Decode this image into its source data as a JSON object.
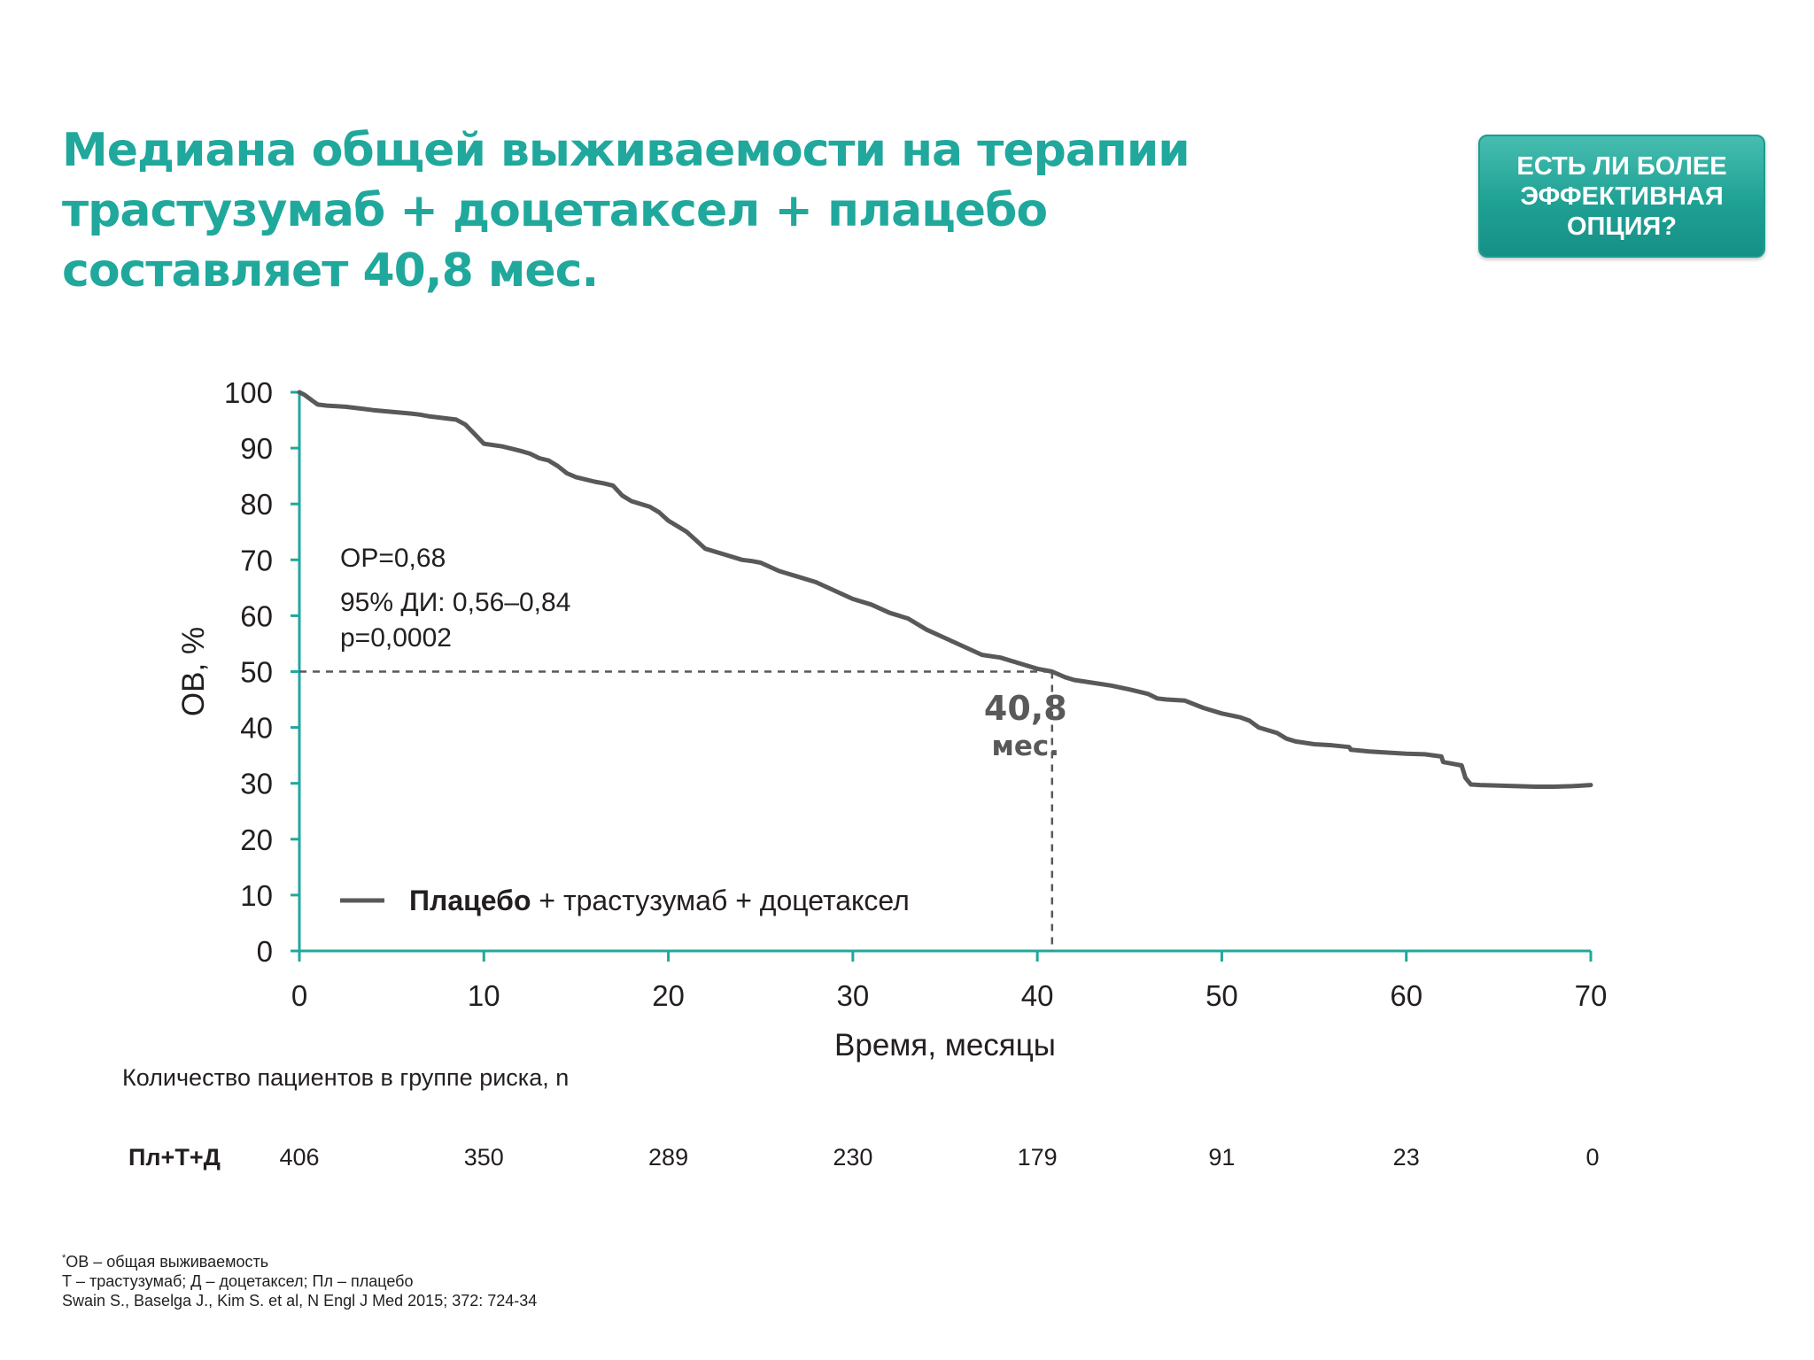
{
  "title": {
    "line1": "Медиана общей выживаемости на терапии",
    "line2": "трастузумаб + доцетаксел + плацебо",
    "line3": "составляет 40,8 мес."
  },
  "cta_button": {
    "label": "ЕСТЬ ЛИ БОЛЕЕ ЭФФЕКТИВНАЯ ОПЦИЯ?"
  },
  "chart_data": {
    "type": "line",
    "xlabel": "Время, месяцы",
    "ylabel": "ОВ, %",
    "xlim": [
      0,
      70
    ],
    "ylim": [
      0,
      100
    ],
    "x_ticks": [
      0,
      10,
      20,
      30,
      40,
      50,
      60,
      70
    ],
    "y_ticks": [
      0,
      10,
      20,
      30,
      40,
      50,
      60,
      70,
      80,
      90,
      100
    ],
    "grid": false,
    "legend_position": "bottom-left",
    "legend": {
      "bold": "Плацебо",
      "rest": " + трастузумаб + доцетаксел"
    },
    "series": [
      {
        "color": "#58595b",
        "x": [
          0,
          0.3,
          0.7,
          1.0,
          1.5,
          2.5,
          3.5,
          4.0,
          5.0,
          6.0,
          6.5,
          7.0,
          7.5,
          8.5,
          9.0,
          9.5,
          10.0,
          11.0,
          12.0,
          12.5,
          13.0,
          13.5,
          14.0,
          14.5,
          15.0,
          16.0,
          16.5,
          17.0,
          17.5,
          18.0,
          19.0,
          19.5,
          20.0,
          20.5,
          21.0,
          21.5,
          22.0,
          23.0,
          24.0,
          24.5,
          25.0,
          26.0,
          27.0,
          28.0,
          29.0,
          30.0,
          31.0,
          32.0,
          33.0,
          34.0,
          35.0,
          36.0,
          37.0,
          38.0,
          39.0,
          40.0,
          40.8,
          41.5,
          42.0,
          43.0,
          44.0,
          45.0,
          46.0,
          46.5,
          47.0,
          48.0,
          49.0,
          50.0,
          51.0,
          51.5,
          52.0,
          53.0,
          53.5,
          54.0,
          55.0,
          56.0,
          56.9,
          57.0,
          58.0,
          59.0,
          60.0,
          61.0,
          61.9,
          62.0,
          62.5,
          63.0,
          63.2,
          63.5,
          64.0,
          65.0,
          66.0,
          67.0,
          68.0,
          69.0,
          70.0
        ],
        "y": [
          100,
          99.5,
          98.5,
          97.8,
          97.6,
          97.4,
          97.0,
          96.8,
          96.5,
          96.2,
          96.0,
          95.7,
          95.5,
          95.1,
          94.2,
          92.5,
          90.8,
          90.3,
          89.5,
          89.0,
          88.2,
          87.8,
          86.8,
          85.5,
          84.8,
          84.0,
          83.7,
          83.3,
          81.5,
          80.5,
          79.5,
          78.5,
          77.0,
          76.0,
          75.0,
          73.5,
          72.0,
          71.0,
          70.0,
          69.8,
          69.5,
          68.0,
          67.0,
          66.0,
          64.5,
          63.0,
          62.0,
          60.5,
          59.5,
          57.5,
          56.0,
          54.5,
          53.0,
          52.5,
          51.5,
          50.5,
          50.0,
          49.0,
          48.5,
          48.0,
          47.5,
          46.8,
          46.0,
          45.2,
          45.0,
          44.8,
          43.5,
          42.5,
          41.8,
          41.2,
          40.0,
          39.0,
          38.0,
          37.5,
          37.0,
          36.8,
          36.5,
          36.0,
          35.7,
          35.5,
          35.3,
          35.2,
          34.8,
          33.8,
          33.5,
          33.2,
          31.0,
          29.8,
          29.7,
          29.6,
          29.5,
          29.4,
          29.4,
          29.5,
          29.7
        ]
      }
    ],
    "annotations": [
      {
        "text": "ОР=0,68"
      },
      {
        "text": "95% ДИ: 0,56–0,84"
      },
      {
        "text": "p=0,0002"
      }
    ],
    "median": {
      "x": 40.8,
      "y": 50,
      "value_label": "40,8",
      "unit_label": "мес."
    }
  },
  "risk_table": {
    "title": "Количество пациентов в группе риска, n",
    "row_label": "Пл+Т+Д",
    "times": [
      0,
      10,
      20,
      30,
      40,
      50,
      60,
      70
    ],
    "values": [
      "406",
      "350",
      "289",
      "230",
      "179",
      "91",
      "23",
      "0"
    ]
  },
  "footnotes": {
    "line1_mark": "*",
    "line1_text": "ОВ – общая выживаемость",
    "line2": "Т – трастузумаб; Д – доцетаксел; Пл – плацебо",
    "line3": "Swain S., Baselga J., Kim S. et al, N Engl J Med 2015; 372: 724-34"
  }
}
